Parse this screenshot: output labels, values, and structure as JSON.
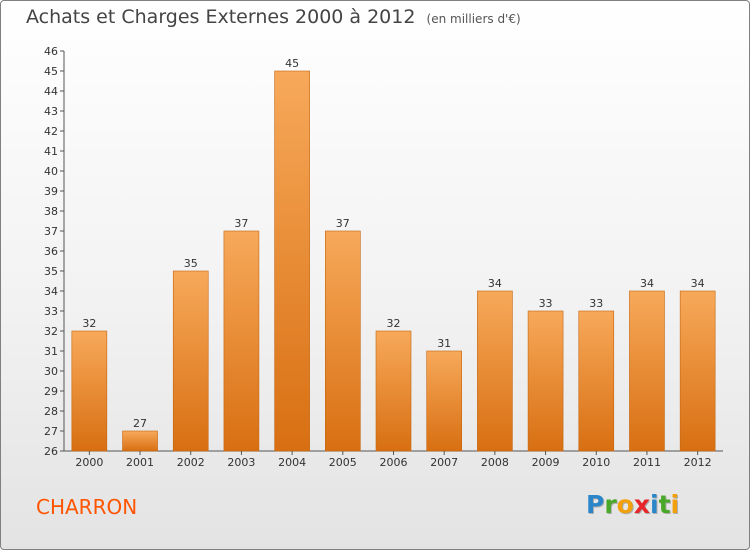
{
  "header": {
    "title": "Achats et Charges Externes 2000 à 2012",
    "subtitle": "(en milliers d'€)"
  },
  "footer": {
    "town": "CHARRON",
    "logo_letters": [
      {
        "char": "P",
        "color": "#2a86c8"
      },
      {
        "char": "r",
        "color": "#4aa829"
      },
      {
        "char": "o",
        "color": "#f2a00c"
      },
      {
        "char": "x",
        "color": "#e8262a"
      },
      {
        "char": "i",
        "color": "#2a86c8"
      },
      {
        "char": "t",
        "color": "#4aa829"
      },
      {
        "char": "i",
        "color": "#f2a00c"
      }
    ]
  },
  "colors": {
    "bar_top": "#f7a95a",
    "bar_bottom": "#d86f12",
    "town": "#ff5500"
  },
  "chart_data": {
    "type": "bar",
    "title": "Achats et Charges Externes 2000 à 2012",
    "subtitle": "(en milliers d'€)",
    "categories": [
      "2000",
      "2001",
      "2002",
      "2003",
      "2004",
      "2005",
      "2006",
      "2007",
      "2008",
      "2009",
      "2010",
      "2011",
      "2012"
    ],
    "values": [
      32,
      27,
      35,
      37,
      45,
      37,
      32,
      31,
      34,
      33,
      33,
      34,
      34
    ],
    "ylim": [
      26,
      46
    ],
    "yticks": [
      26,
      27,
      28,
      29,
      30,
      31,
      32,
      33,
      34,
      35,
      36,
      37,
      38,
      39,
      40,
      41,
      42,
      43,
      44,
      45,
      46
    ],
    "grid": false,
    "legend": "none"
  }
}
